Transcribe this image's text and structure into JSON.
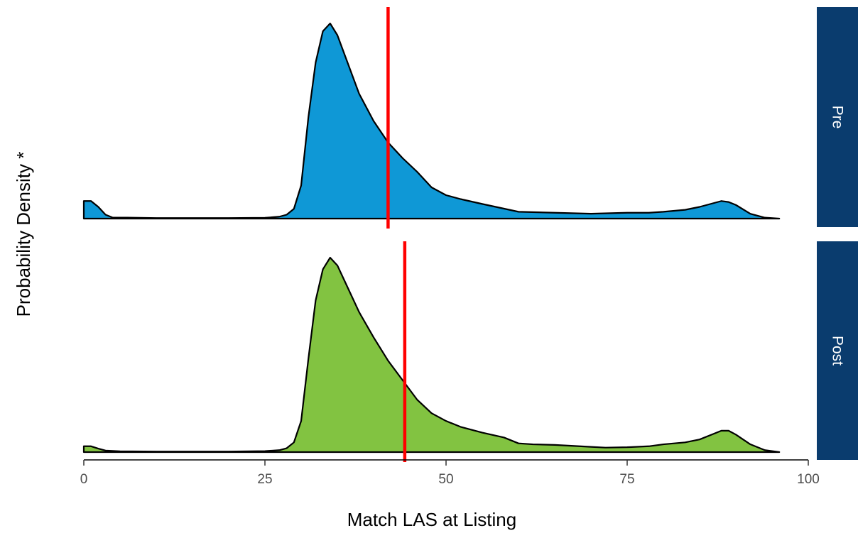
{
  "chart_data": {
    "type": "area",
    "subtype": "faceted-density",
    "xlabel": "Match LAS at Listing",
    "ylabel": "Probability Density *",
    "xlim": [
      0,
      100
    ],
    "x_ticks": [
      "0",
      "25",
      "50",
      "75",
      "100"
    ],
    "y_ticks_shown": false,
    "grid": false,
    "legend": "none",
    "facets": [
      {
        "label": "Pre",
        "fill_color": "#0f98d6",
        "stroke_color": "#000000",
        "reference_line": {
          "x": 42,
          "color": "#ff0000"
        },
        "density": {
          "x": [
            0,
            1,
            2,
            3,
            4,
            6,
            10,
            15,
            20,
            25,
            27,
            28,
            29,
            30,
            31,
            32,
            33,
            34,
            35,
            36,
            38,
            40,
            42,
            44,
            46,
            48,
            50,
            52,
            55,
            60,
            65,
            70,
            75,
            78,
            80,
            83,
            85,
            87,
            88,
            89,
            90,
            92,
            94,
            96
          ],
          "y": [
            0.09,
            0.09,
            0.06,
            0.02,
            0.005,
            0.005,
            0.003,
            0.003,
            0.003,
            0.004,
            0.01,
            0.02,
            0.05,
            0.17,
            0.52,
            0.8,
            0.96,
            1.0,
            0.94,
            0.84,
            0.64,
            0.5,
            0.39,
            0.31,
            0.24,
            0.16,
            0.12,
            0.1,
            0.075,
            0.035,
            0.03,
            0.025,
            0.03,
            0.03,
            0.035,
            0.045,
            0.06,
            0.08,
            0.09,
            0.085,
            0.07,
            0.025,
            0.005,
            0.0
          ]
        }
      },
      {
        "label": "Post",
        "fill_color": "#82c341",
        "stroke_color": "#000000",
        "reference_line": {
          "x": 44.3,
          "color": "#ff0000"
        },
        "density": {
          "x": [
            0,
            1,
            2,
            3,
            5,
            10,
            15,
            20,
            25,
            27,
            28,
            29,
            30,
            31,
            32,
            33,
            34,
            35,
            36,
            38,
            40,
            42,
            44,
            46,
            48,
            50,
            52,
            55,
            58,
            60,
            62,
            65,
            70,
            72,
            75,
            78,
            80,
            83,
            85,
            87,
            88,
            89,
            90,
            92,
            94,
            96
          ],
          "y": [
            0.03,
            0.03,
            0.018,
            0.008,
            0.004,
            0.003,
            0.003,
            0.003,
            0.005,
            0.01,
            0.02,
            0.05,
            0.16,
            0.48,
            0.78,
            0.94,
            1.0,
            0.96,
            0.88,
            0.72,
            0.59,
            0.47,
            0.37,
            0.27,
            0.2,
            0.16,
            0.13,
            0.1,
            0.075,
            0.045,
            0.04,
            0.037,
            0.027,
            0.023,
            0.025,
            0.03,
            0.04,
            0.05,
            0.065,
            0.095,
            0.11,
            0.11,
            0.09,
            0.04,
            0.01,
            0.0
          ]
        }
      }
    ]
  }
}
